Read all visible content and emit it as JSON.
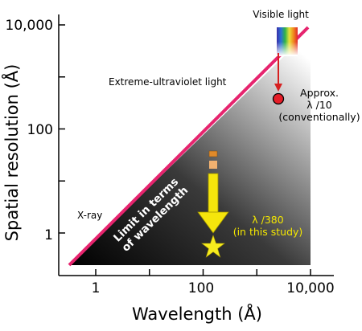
{
  "chart_data": {
    "type": "line",
    "x_axis": {
      "label": "Wavelength (Å)",
      "scale": "log",
      "range": [
        0.3,
        15000
      ],
      "ticks": [
        0.1,
        1,
        10,
        100,
        1000,
        10000
      ],
      "tick_labels": [
        "1",
        "100",
        "10,000"
      ],
      "tick_label_values": [
        1,
        100,
        10000
      ]
    },
    "y_axis": {
      "label": "Spatial resolution (Å)",
      "scale": "log",
      "range": [
        0.2,
        20000
      ],
      "ticks": [
        1,
        10,
        100,
        1000,
        10000
      ],
      "tick_labels": [
        "1",
        "100",
        "10,000"
      ],
      "tick_label_values": [
        1,
        100,
        10000
      ]
    },
    "series": [
      {
        "name": "Limit in terms of wavelength",
        "color": "#e6246e",
        "points": [
          [
            0.35,
            0.25
          ],
          [
            10000,
            7000
          ]
        ]
      }
    ],
    "regions": [
      {
        "label": "X-ray",
        "x": 0.6,
        "y": 3
      },
      {
        "label": "Extreme-ultraviolet light",
        "x": 20,
        "y": 400
      },
      {
        "label": "Visible light",
        "x": 4000,
        "y": 12000
      }
    ],
    "annotations": {
      "diagonal_label": [
        "Limit in terms",
        "of wavelength"
      ],
      "visible_light": "Visible light",
      "conventional_point": {
        "x": 5500,
        "y": 400,
        "label": [
          "Approx.",
          "λ /10",
          "(conventionally)"
        ],
        "color": "#e61e28"
      },
      "this_study_point": {
        "x": 180,
        "y": 0.5,
        "label": [
          "λ /380",
          "(in this study)"
        ],
        "color": "#f7ec1e"
      }
    },
    "colors": {
      "line": "#e6246e",
      "arrow_red": "#d62020",
      "arrow_yellow": "#f5e50c",
      "gradient_dark": "#000000",
      "gradient_light": "#ffffff"
    }
  }
}
